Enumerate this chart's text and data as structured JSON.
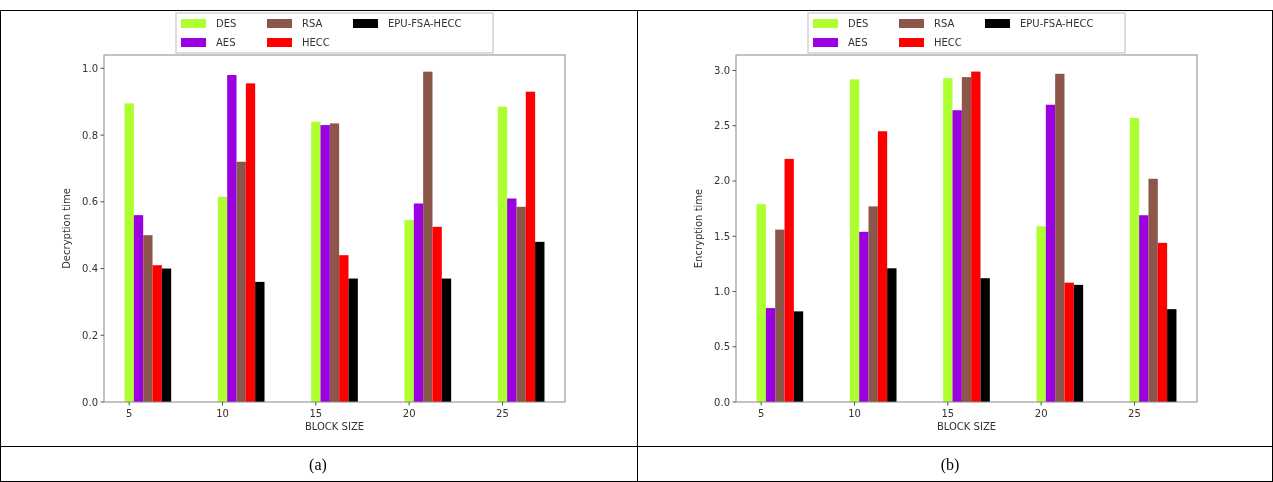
{
  "chart_data": [
    {
      "type": "bar",
      "xlabel": "BLOCK SIZE",
      "ylabel": "Decryption time",
      "x": [
        5,
        10,
        15,
        20,
        25
      ],
      "xlim": [
        3.65,
        28.35
      ],
      "xticks": [
        5,
        10,
        15,
        20,
        25
      ],
      "ylim": [
        0,
        1.04
      ],
      "yticks": [
        {
          "value": 0,
          "label": "0.0"
        },
        0.2,
        0.4,
        0.6,
        0.8,
        {
          "value": 1,
          "label": "1.0"
        }
      ],
      "grid": false,
      "legend": "top",
      "annotations": [
        "(a)"
      ],
      "series": [
        {
          "name": "DES",
          "color": "#adff2f",
          "values": [
            0.895,
            0.615,
            0.84,
            0.545,
            0.885
          ]
        },
        {
          "name": "AES",
          "color": "#9b00e0",
          "values": [
            0.56,
            0.98,
            0.83,
            0.595,
            0.61
          ]
        },
        {
          "name": "RSA",
          "color": "#8c564b",
          "values": [
            0.5,
            0.72,
            0.835,
            0.99,
            0.585
          ]
        },
        {
          "name": "HECC",
          "color": "#ff0000",
          "values": [
            0.41,
            0.955,
            0.44,
            0.525,
            0.93
          ]
        },
        {
          "name": "EPU-FSA-HECC",
          "color": "#000000",
          "values": [
            0.4,
            0.36,
            0.37,
            0.37,
            0.48
          ]
        }
      ]
    },
    {
      "type": "bar",
      "xlabel": "BLOCK SIZE",
      "ylabel": "Encryption time",
      "x": [
        5,
        10,
        15,
        20,
        25
      ],
      "xlim": [
        3.65,
        28.35
      ],
      "xticks": [
        5,
        10,
        15,
        20,
        25
      ],
      "ylim": [
        0,
        3.14
      ],
      "yticks": [
        {
          "value": 0,
          "label": "0.0"
        },
        0.5,
        {
          "value": 1,
          "label": "1.0"
        },
        1.5,
        {
          "value": 2,
          "label": "2.0"
        },
        2.5,
        {
          "value": 3,
          "label": "3.0"
        }
      ],
      "grid": false,
      "legend": "top",
      "annotations": [
        "(b)"
      ],
      "series": [
        {
          "name": "DES",
          "color": "#adff2f",
          "values": [
            1.79,
            2.92,
            2.93,
            1.59,
            2.57
          ]
        },
        {
          "name": "AES",
          "color": "#9b00e0",
          "values": [
            0.85,
            1.54,
            2.64,
            2.69,
            1.69
          ]
        },
        {
          "name": "RSA",
          "color": "#8c564b",
          "values": [
            1.56,
            1.77,
            2.94,
            2.97,
            2.02
          ]
        },
        {
          "name": "HECC",
          "color": "#ff0000",
          "values": [
            2.2,
            2.45,
            2.99,
            1.08,
            1.44
          ]
        },
        {
          "name": "EPU-FSA-HECC",
          "color": "#000000",
          "values": [
            0.82,
            1.21,
            1.12,
            1.06,
            0.84
          ]
        }
      ]
    }
  ]
}
